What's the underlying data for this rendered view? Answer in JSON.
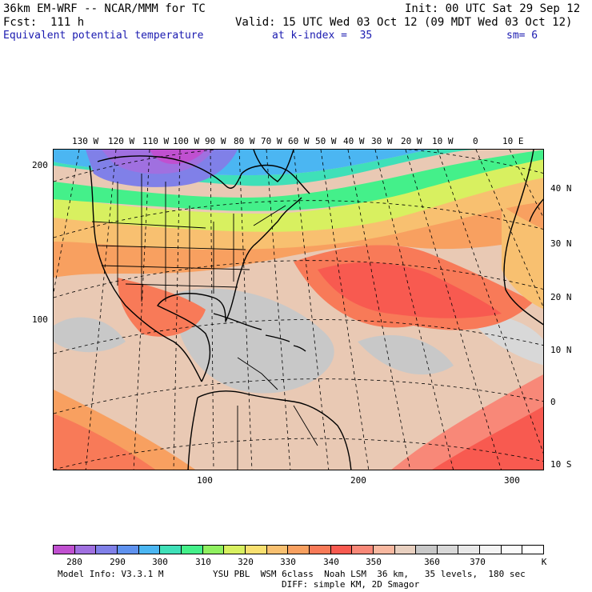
{
  "header": {
    "model_line": "36km EM-WRF -- NCAR/MMM for TC",
    "init_line": "Init: 00 UTC Sat 29 Sep 12",
    "fcst_line": "Fcst:  111 h",
    "valid_line": "Valid: 15 UTC Wed 03 Oct 12 (09 MDT Wed 03 Oct 12)",
    "field_name": "Equivalent potential temperature",
    "level_info": "at k-index =  35",
    "smoothing": "sm= 6"
  },
  "map": {
    "longitude_labels": [
      "130 W",
      "120 W",
      "110 W",
      "100 W",
      "90 W",
      "80 W",
      "70 W",
      "60 W",
      "50 W",
      "40 W",
      "30 W",
      "20 W",
      "10 W",
      "0",
      "10 E"
    ],
    "latitude_labels": [
      "40 N",
      "30 N",
      "20 N",
      "10 N",
      "0",
      "10 S"
    ],
    "grid_x_labels": [
      "100",
      "200",
      "300"
    ],
    "grid_y_labels": [
      "200",
      "100"
    ]
  },
  "colorbar": {
    "unit": "K",
    "tick_labels": [
      "280",
      "290",
      "300",
      "310",
      "320",
      "330",
      "340",
      "350",
      "360",
      "370"
    ],
    "colors": [
      "#c050d0",
      "#a070e0",
      "#8080e8",
      "#5f92ef",
      "#4bb6f2",
      "#3fe0b8",
      "#44f08a",
      "#90f060",
      "#d8f060",
      "#f8e070",
      "#f8c070",
      "#f8a060",
      "#f87a58",
      "#f85a50",
      "#f88878",
      "#f8b8a0",
      "#e8d0c0",
      "#c8c8c8",
      "#d8d8d8",
      "#e8e8e8",
      "#f4f4f4",
      "#fafafa",
      "#ffffff"
    ]
  },
  "footer": {
    "model_info": "Model Info: V3.3.1 M",
    "physics": "YSU PBL  WSM 6class  Noah LSM  36 km,   35 levels,  180 sec",
    "diffusion": "DIFF: simple KM, 2D Smagor"
  }
}
